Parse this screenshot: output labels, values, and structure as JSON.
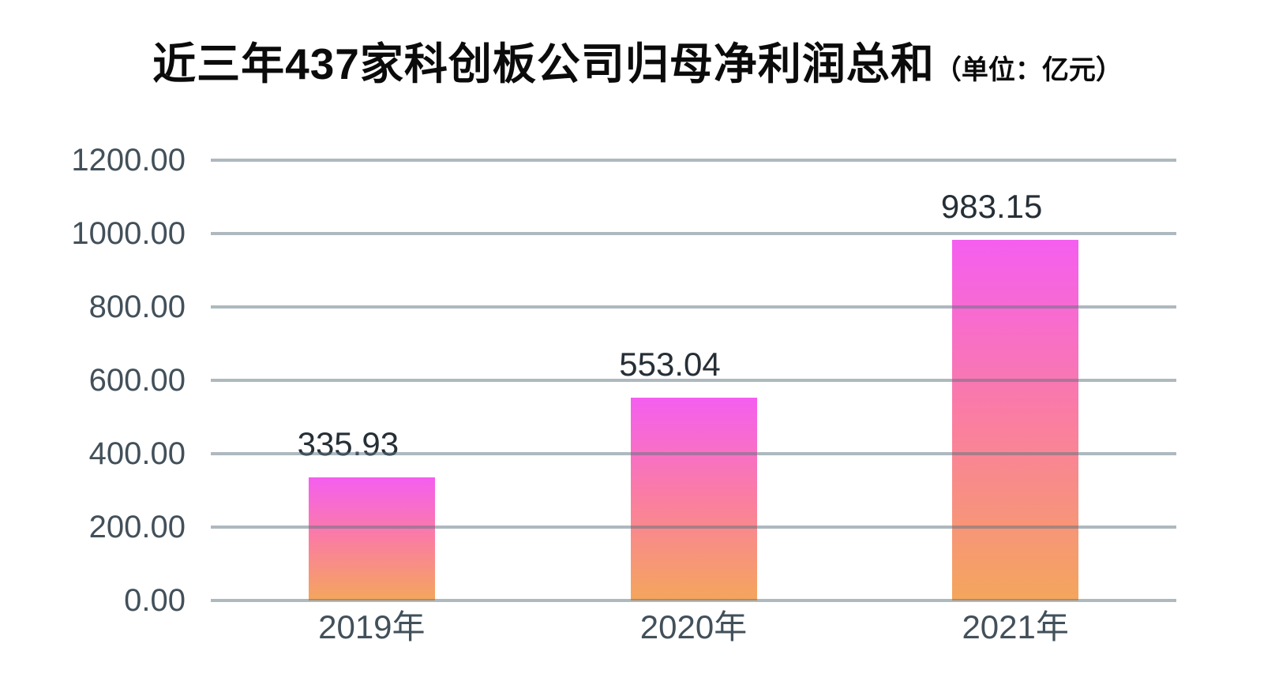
{
  "title": {
    "main": "近三年437家科创板公司归母净利润总和",
    "unit": "（单位：亿元）"
  },
  "chart_data": {
    "type": "bar",
    "title": "近三年437家科创板公司归母净利润总和（单位：亿元）",
    "categories": [
      "2019年",
      "2020年",
      "2021年"
    ],
    "values": [
      335.93,
      553.04,
      983.15
    ],
    "value_labels": [
      "335.93",
      "553.04",
      "983.15"
    ],
    "xlabel": "",
    "ylabel": "",
    "ylim": [
      0,
      1200
    ],
    "ytick_step": 200,
    "yticks": [
      "1200.00",
      "1000.00",
      "800.00",
      "600.00",
      "400.00",
      "200.00",
      "0.00"
    ],
    "grid": true,
    "legend": false,
    "colors": {
      "bar_gradient_top": "#f55ef0",
      "bar_gradient_mid": "#fa7f9e",
      "bar_gradient_bottom": "#f4a65c",
      "gridline": "rgba(93,115,127,0.5)",
      "axis_text": "#42505a",
      "value_text": "#262f36",
      "title_text": "#0b0b0b",
      "background": "#ffffff"
    }
  }
}
